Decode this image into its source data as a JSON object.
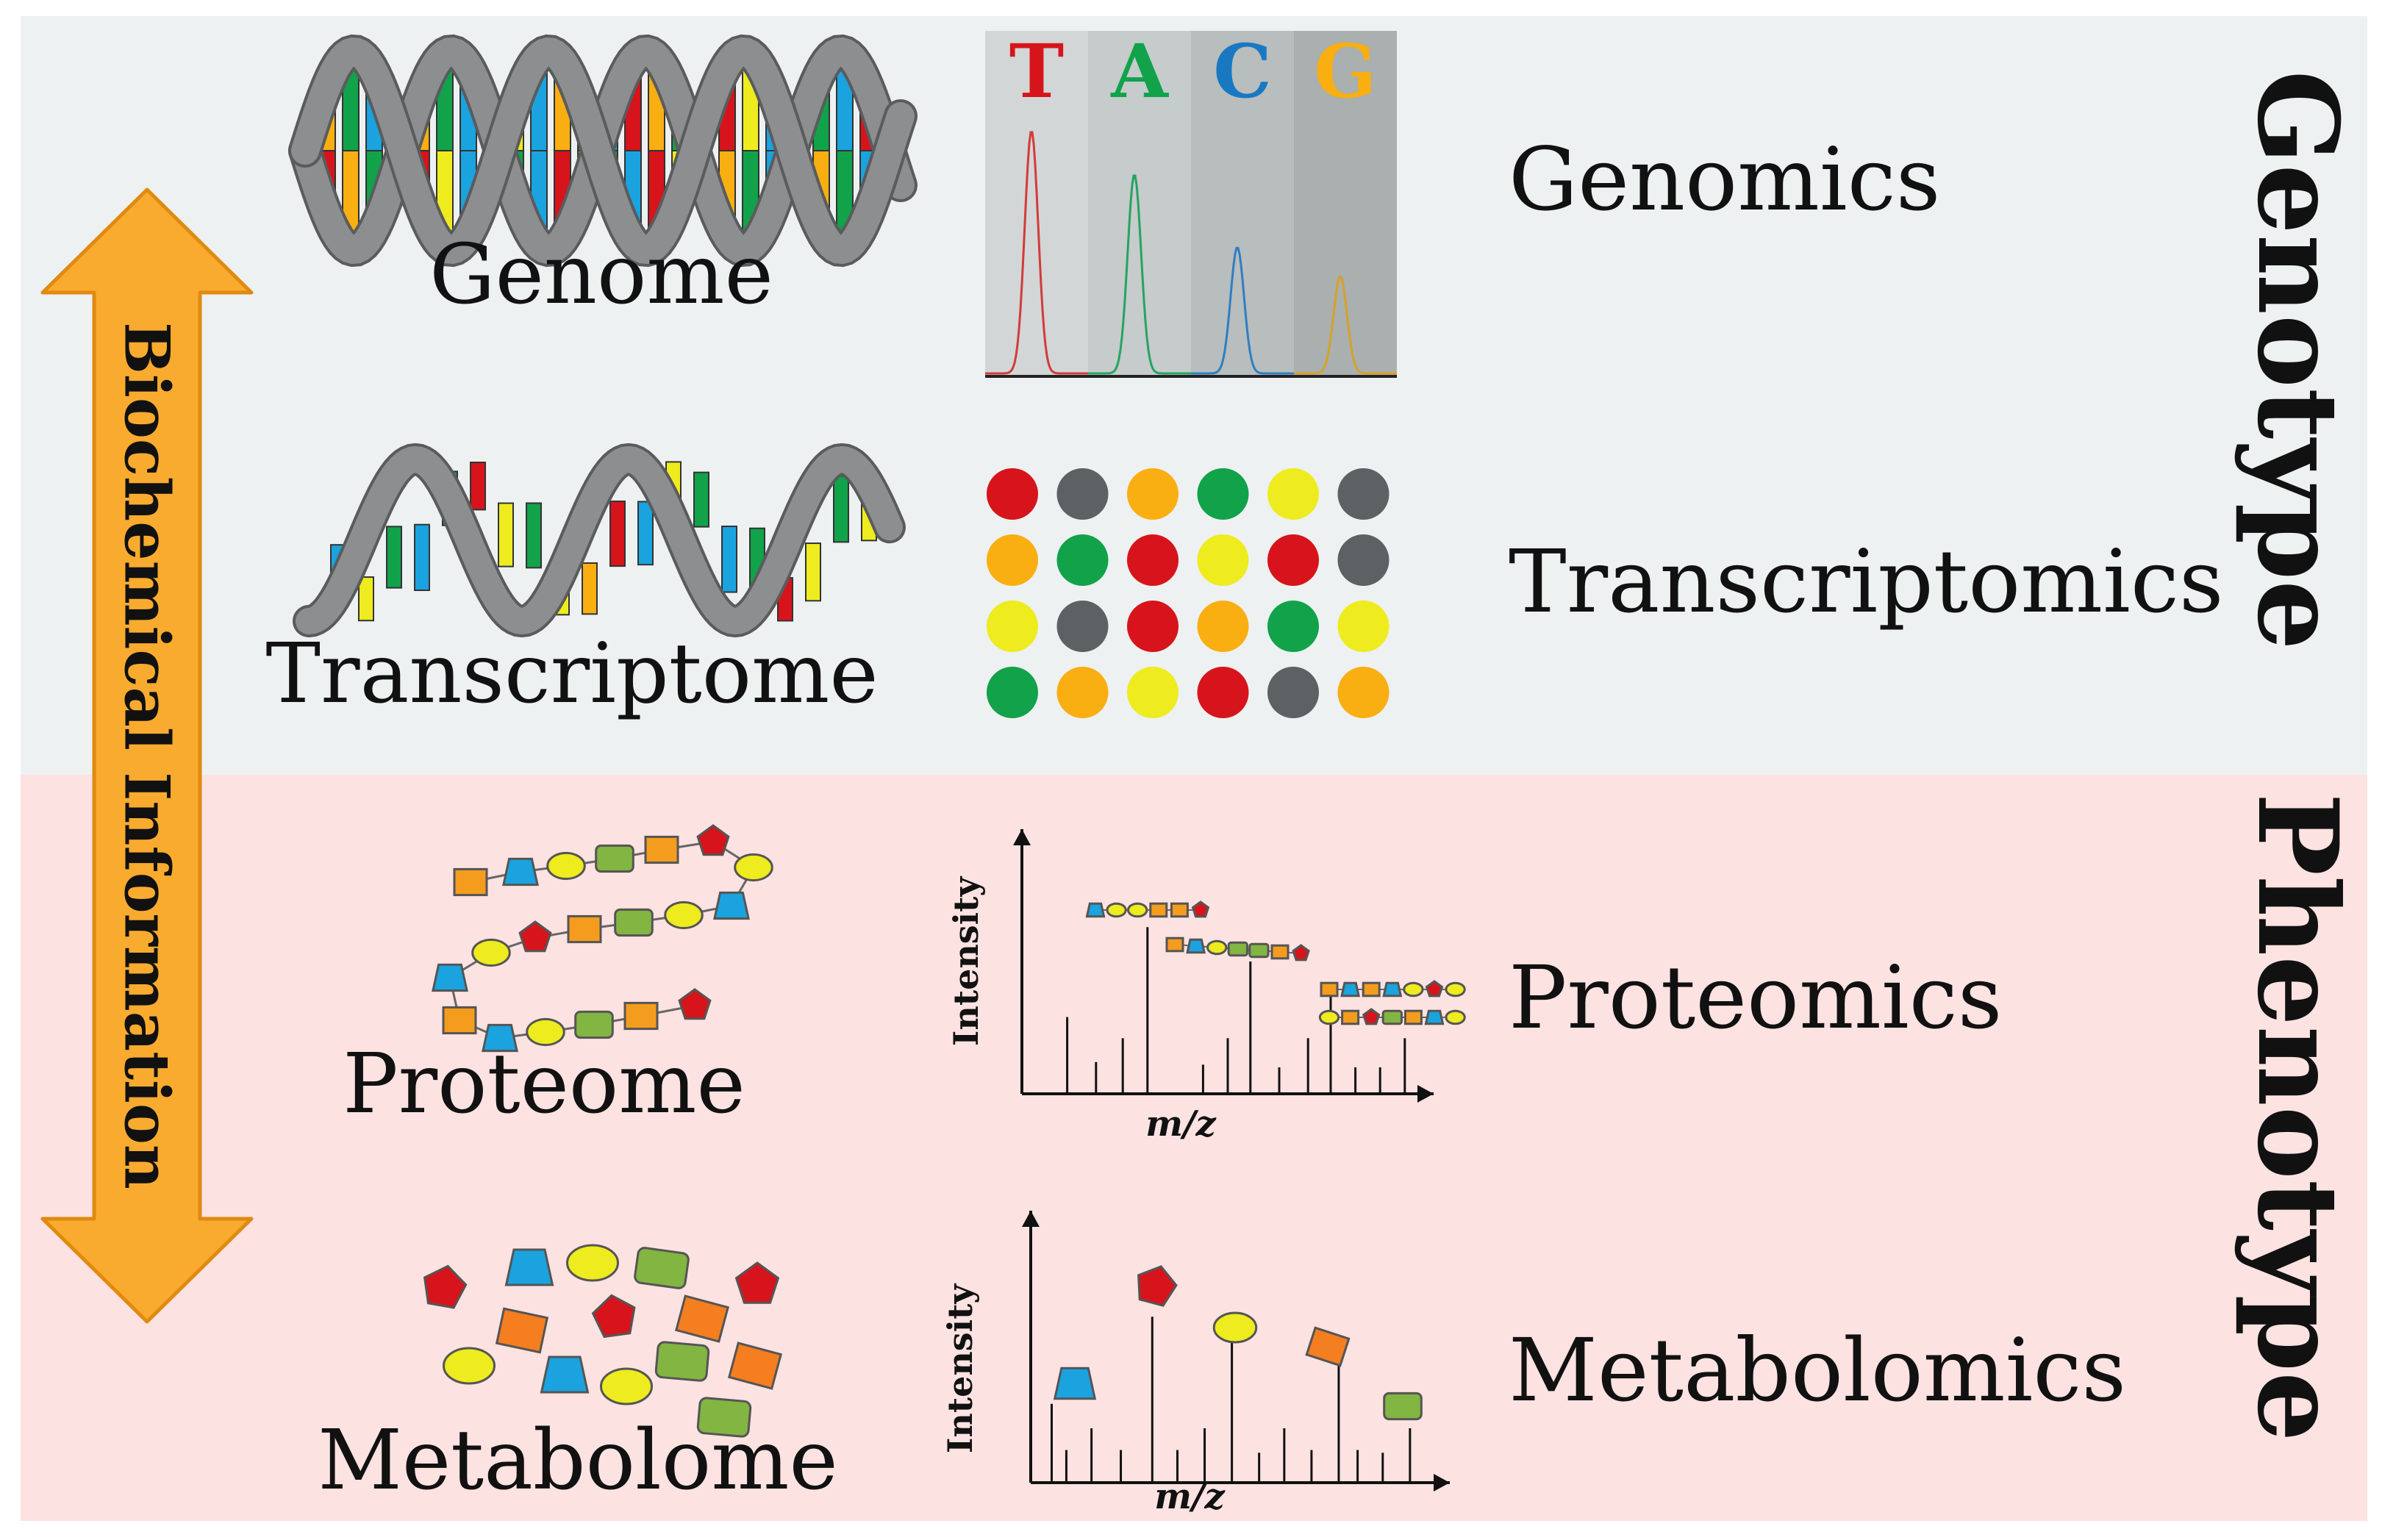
{
  "colors": {
    "genotype_bg": "#edf1f1",
    "phenotype_bg": "#fde2e2",
    "arrow_fill": "#f9ab2f",
    "arrow_stroke": "#e08a10",
    "red": "#d7141b",
    "green": "#11a24a",
    "blue": "#1aa3df",
    "orange": "#f9ae12",
    "yellow": "#eeeb1e",
    "gray": "#5d6163",
    "helix": "#8d8e90",
    "protein_orange": "#f49c1d",
    "protein_green": "#82b541",
    "metabolite_orange": "#f57e20"
  },
  "axis_label": "Biochemical Information",
  "groups": {
    "genotype": "Genotype",
    "phenotype": "Phenotype"
  },
  "rows": [
    {
      "entity": "Genome",
      "field": "Genomics"
    },
    {
      "entity": "Transcriptome",
      "field": "Transcriptomics"
    },
    {
      "entity": "Proteome",
      "field": "Proteomics"
    },
    {
      "entity": "Metabolome",
      "field": "Metabolomics"
    }
  ],
  "sequencing": {
    "bases": [
      "T",
      "A",
      "C",
      "G"
    ],
    "peak_heights": [
      1.0,
      0.82,
      0.52,
      0.4
    ]
  },
  "expression_grid": [
    [
      "red",
      "gray",
      "orange",
      "green",
      "yellow",
      "gray"
    ],
    [
      "orange",
      "green",
      "red",
      "yellow",
      "red",
      "gray"
    ],
    [
      "yellow",
      "gray",
      "red",
      "orange",
      "green",
      "yellow"
    ],
    [
      "green",
      "orange",
      "yellow",
      "red",
      "gray",
      "orange"
    ]
  ],
  "spectra": {
    "x_label": "m/z",
    "y_label": "Intensity"
  }
}
